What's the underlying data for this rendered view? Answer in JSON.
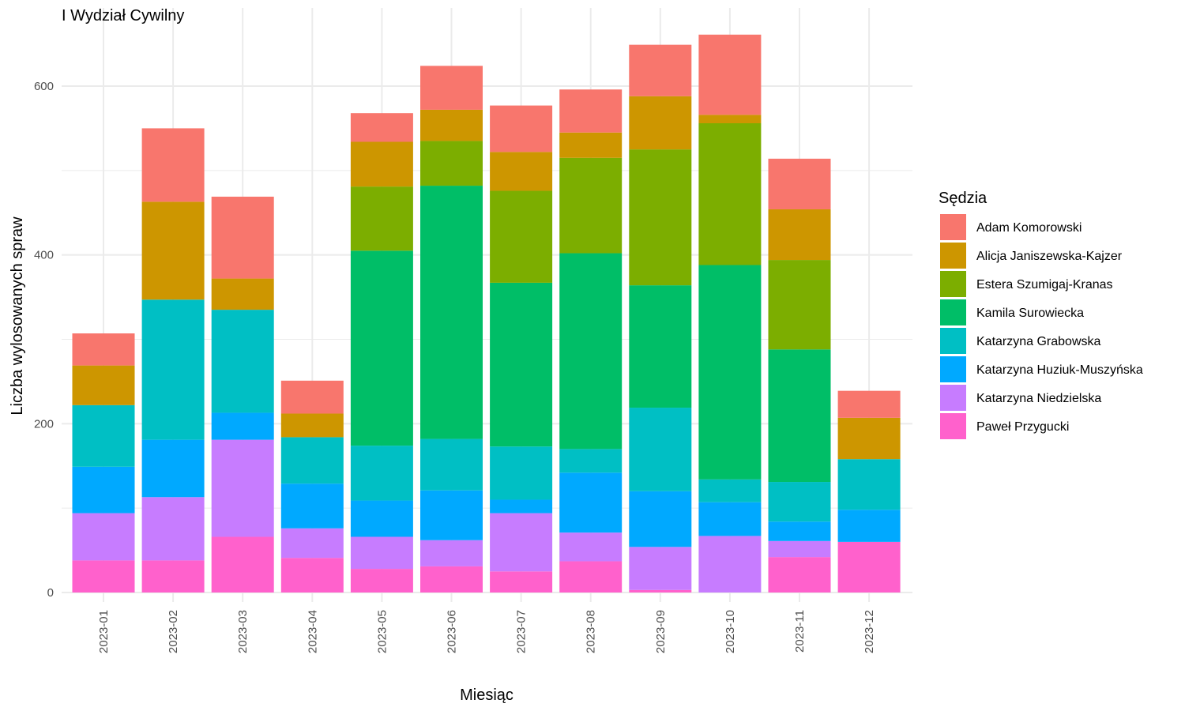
{
  "chart_data": {
    "type": "bar",
    "stacked": true,
    "title": "I Wydział Cywilny",
    "xlabel": "Miesiąc",
    "ylabel": "Liczba wylosowanych spraw",
    "ylim": [
      0,
      660
    ],
    "yticks": [
      0,
      200,
      400,
      600
    ],
    "grid": true,
    "legend_title": "Sędzia",
    "legend_position": "right",
    "categories": [
      "2023-01",
      "2023-02",
      "2023-03",
      "2023-04",
      "2023-05",
      "2023-06",
      "2023-07",
      "2023-08",
      "2023-09",
      "2023-10",
      "2023-11",
      "2023-12"
    ],
    "series": [
      {
        "name": "Paweł Przygucki",
        "color": "#FF61CC",
        "values": [
          38,
          38,
          66,
          41,
          28,
          31,
          25,
          37,
          3,
          0,
          42,
          60
        ]
      },
      {
        "name": "Katarzyna Niedzielska",
        "color": "#C77CFF",
        "values": [
          56,
          75,
          115,
          35,
          38,
          31,
          69,
          34,
          51,
          67,
          19,
          0
        ]
      },
      {
        "name": "Katarzyna Huziuk-Muszyńska",
        "color": "#00A9FF",
        "values": [
          55,
          68,
          32,
          53,
          43,
          59,
          16,
          71,
          66,
          40,
          23,
          38
        ]
      },
      {
        "name": "Katarzyna Grabowska",
        "color": "#00BFC4",
        "values": [
          73,
          166,
          122,
          55,
          65,
          61,
          63,
          28,
          99,
          27,
          47,
          60
        ]
      },
      {
        "name": "Kamila Surowiecka",
        "color": "#00BE67",
        "values": [
          0,
          0,
          0,
          0,
          231,
          300,
          194,
          232,
          145,
          254,
          157,
          0
        ]
      },
      {
        "name": "Estera Szumigaj-Kranas",
        "color": "#7CAE00",
        "values": [
          0,
          0,
          0,
          0,
          76,
          53,
          109,
          113,
          161,
          168,
          106,
          0
        ]
      },
      {
        "name": "Alicja Janiszewska-Kajzer",
        "color": "#CD9600",
        "values": [
          47,
          116,
          37,
          28,
          53,
          37,
          46,
          30,
          63,
          10,
          60,
          49
        ]
      },
      {
        "name": "Adam Komorowski",
        "color": "#F8766D",
        "values": [
          38,
          87,
          97,
          39,
          34,
          52,
          55,
          51,
          61,
          95,
          60,
          32
        ]
      }
    ],
    "legend_order": [
      "Adam Komorowski",
      "Alicja Janiszewska-Kajzer",
      "Estera Szumigaj-Kranas",
      "Kamila Surowiecka",
      "Katarzyna Grabowska",
      "Katarzyna Huziuk-Muszyńska",
      "Katarzyna Niedzielska",
      "Paweł Przygucki"
    ]
  }
}
